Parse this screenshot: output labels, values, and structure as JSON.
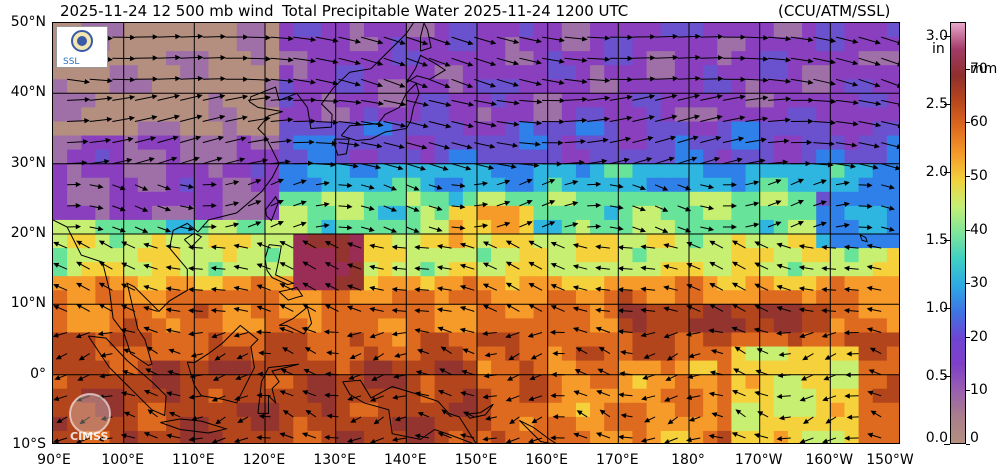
{
  "header": {
    "left": "2025-11-24 12 500 mb wind",
    "title": "Total Precipitable Water  2025-11-24 1200 UTC",
    "right": "(CCU/ATM/SSL)"
  },
  "map": {
    "lat_range": [
      -10,
      50
    ],
    "lon_range": [
      90,
      210
    ],
    "lat_labels": [
      "50°N",
      "40°N",
      "30°N",
      "20°N",
      "10°N",
      "0°",
      "10°S"
    ],
    "lon_labels": [
      "90°E",
      "100°E",
      "110°E",
      "120°E",
      "130°E",
      "140°E",
      "150°E",
      "160°E",
      "170°E",
      "180°",
      "170°W",
      "160°W",
      "150°W"
    ],
    "palette": [
      "#b48f80",
      "#9f6fa8",
      "#8a3fbf",
      "#6a52cf",
      "#2f80e8",
      "#2fb6e0",
      "#67e39a",
      "#c7ef72",
      "#f5d23c",
      "#f69a2a",
      "#dd6a1e",
      "#b3451d",
      "#93342e",
      "#9a2d55"
    ]
  },
  "colorbar": {
    "inch_unit": "in",
    "mm_unit": "mm",
    "inch_ticks": [
      "3.0",
      "2.5",
      "2.0",
      "1.5",
      "1.0",
      "0.5",
      "0.0"
    ],
    "mm_ticks": [
      "70",
      "60",
      "50",
      "40",
      "30",
      "20",
      "10",
      "0"
    ],
    "inch_max": 3.1,
    "colors": [
      "#b48f80",
      "#a97f8b",
      "#9a5fb1",
      "#7f3fc8",
      "#6e45d3",
      "#3e74e3",
      "#2da9e4",
      "#3dd0c4",
      "#7de59a",
      "#c3ef76",
      "#f1d23d",
      "#f59c2b",
      "#df6b1f",
      "#b8471c",
      "#8f2f2c",
      "#a23a67",
      "#e9a6cb"
    ]
  },
  "logos": {
    "ssl_text": "SSL",
    "cimss_text": "CIMSS"
  }
}
